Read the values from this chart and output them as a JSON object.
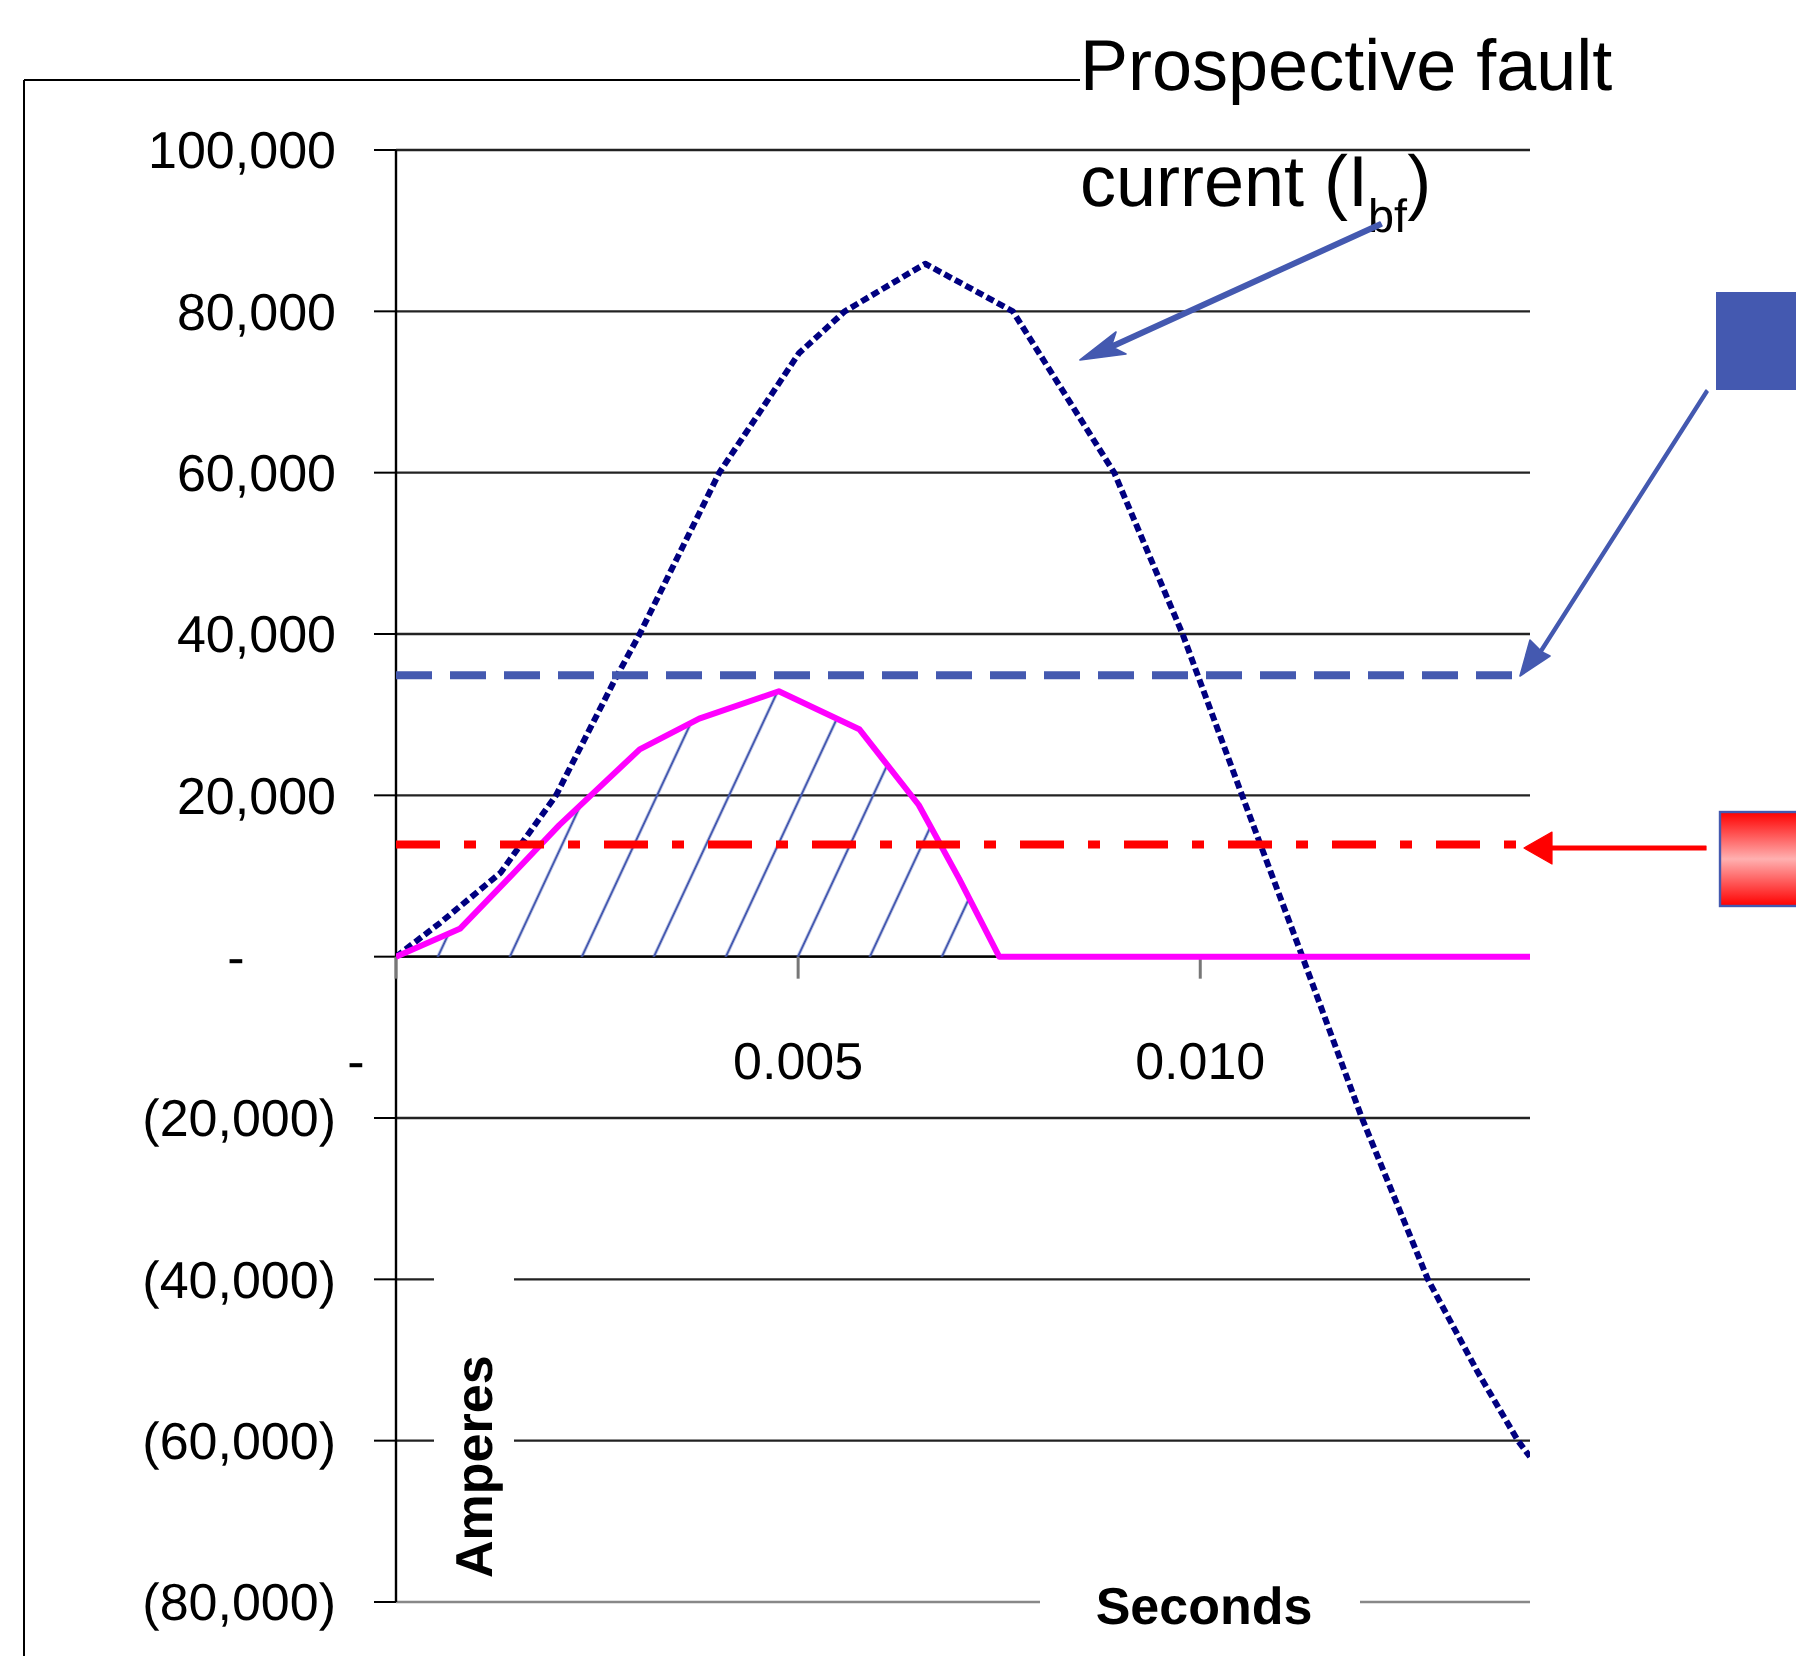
{
  "chart_data": {
    "type": "line",
    "xlabel": "Seconds",
    "ylabel": "Amperes",
    "xlim": [
      0,
      0.0141
    ],
    "xticks": [
      {
        "value": 0,
        "label": "-"
      },
      0.005,
      {
        "value": 0.01,
        "label": "0.010"
      }
    ],
    "ylim": [
      -80000,
      100000
    ],
    "yticks": [
      {
        "value": -80000,
        "label": "(80,000)"
      },
      {
        "value": -60000,
        "label": "(60,000)"
      },
      {
        "value": -40000,
        "label": "(40,000)"
      },
      {
        "value": -20000,
        "label": "(20,000)"
      },
      {
        "value": 0,
        "label": "-"
      },
      {
        "value": 20000,
        "label": "20,000"
      },
      {
        "value": 40000,
        "label": "40,000"
      },
      {
        "value": 60000,
        "label": "60,000"
      },
      {
        "value": 80000,
        "label": "80,000"
      },
      {
        "value": 100000,
        "label": "100,000"
      }
    ],
    "grid": "y",
    "series": [
      {
        "color": "#000080",
        "line_style": "dotted",
        "x": [
          0,
          0.00055,
          0.0013,
          0.00199,
          0.00273,
          0.00303,
          0.00402,
          0.00501,
          0.00558,
          0.00658,
          0.00767,
          0.00893,
          0.00978,
          0.01052,
          0.01127,
          0.01201,
          0.01283,
          0.01345,
          0.01395,
          0.0141
        ],
        "values": [
          0,
          4200,
          10400,
          20000,
          34500,
          40000,
          60000,
          74800,
          80000,
          85900,
          80000,
          60000,
          40000,
          20000,
          0,
          -20000,
          -40000,
          -51500,
          -60000,
          -62000
        ]
      },
      {
        "type": "area",
        "color": "#ff00ff",
        "line_style": "solid",
        "x": [
          0,
          0.0008,
          0.0014,
          0.00203,
          0.00303,
          0.00377,
          0.00476,
          0.00576,
          0.0065,
          0.007,
          0.0075,
          0.0141
        ],
        "values": [
          0,
          3500,
          9700,
          16300,
          25700,
          29500,
          32900,
          28200,
          18800,
          9700,
          0,
          0
        ]
      }
    ],
    "ref_lines": [
      {
        "axis": "y",
        "value": 34900,
        "color": "#4459b0",
        "line_style": "dashed"
      },
      {
        "axis": "y",
        "value": 13900,
        "color": "#ff0000",
        "line_style": "dashdot"
      }
    ],
    "annotations": [
      "Prospective fault current (I$_{bf}$)"
    ]
  }
}
